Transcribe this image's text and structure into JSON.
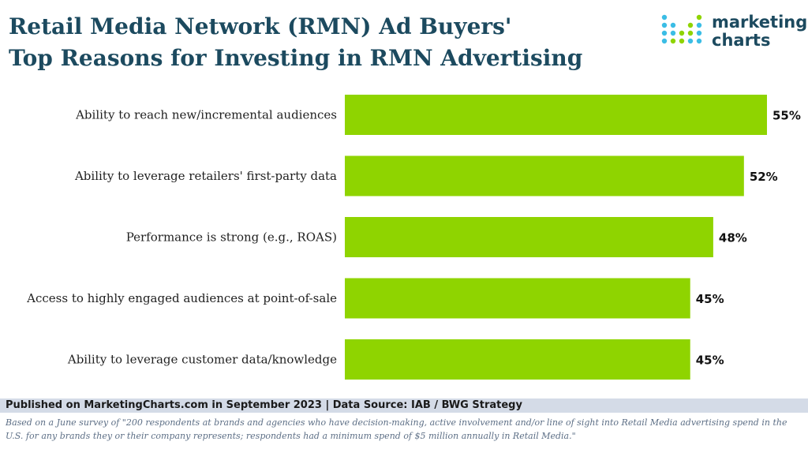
{
  "header": {
    "title_line1": "Retail Media Network (RMN) Ad Buyers'",
    "title_line2": "Top Reasons for Investing in RMN Advertising"
  },
  "logo": {
    "line1": "marketing",
    "line2": "charts"
  },
  "chart_data": {
    "type": "bar",
    "orientation": "horizontal",
    "categories": [
      "Ability to reach new/incremental audiences",
      "Ability to leverage retailers' first-party data",
      "Performance is strong (e.g., ROAS)",
      "Access to highly engaged audiences at point-of-sale",
      "Ability to leverage customer data/knowledge"
    ],
    "values": [
      55,
      52,
      48,
      45,
      45
    ],
    "value_labels": [
      "55%",
      "52%",
      "48%",
      "45%",
      "45%"
    ],
    "xlim": [
      0,
      60
    ],
    "unit": "%",
    "grid": false,
    "bar_color": "#8fd400"
  },
  "source": {
    "published": "Published on MarketingCharts.com in September 2023 | Data Source: IAB / BWG Strategy"
  },
  "footnote": "Based on a June survey of \"200 respondents at brands and agencies who have decision-making, active involvement and/or line of sight into Retail Media advertising spend in the U.S. for any brands they or their company represents; respondents had a minimum spend of $5 million annually in Retail Media.\""
}
